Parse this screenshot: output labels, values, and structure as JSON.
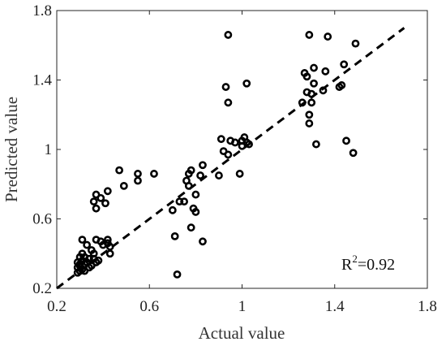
{
  "chart_data": {
    "type": "scatter",
    "xlabel": "Actual value",
    "ylabel": "Predicted value",
    "xlim": [
      0.2,
      1.8
    ],
    "ylim": [
      0.2,
      1.8
    ],
    "xticks": [
      "0.2",
      "0.6",
      "1",
      "1.4",
      "1.8"
    ],
    "yticks": [
      "0.2",
      "0.6",
      "1",
      "1.4",
      "1.8"
    ],
    "annotation": {
      "prefix": "R",
      "sup": "2",
      "suffix": "=0.92"
    },
    "fit_line": {
      "type": "dashed",
      "x": [
        0.2,
        1.7
      ],
      "y": [
        0.2,
        1.7
      ]
    },
    "grid": false,
    "legend": "none",
    "marker": "open-circle",
    "color": "#000000",
    "points": [
      [
        0.29,
        0.29
      ],
      [
        0.3,
        0.3
      ],
      [
        0.31,
        0.31
      ],
      [
        0.32,
        0.3
      ],
      [
        0.29,
        0.32
      ],
      [
        0.3,
        0.34
      ],
      [
        0.31,
        0.36
      ],
      [
        0.32,
        0.38
      ],
      [
        0.3,
        0.38
      ],
      [
        0.33,
        0.35
      ],
      [
        0.34,
        0.32
      ],
      [
        0.35,
        0.33
      ],
      [
        0.36,
        0.37
      ],
      [
        0.37,
        0.35
      ],
      [
        0.38,
        0.36
      ],
      [
        0.36,
        0.4
      ],
      [
        0.35,
        0.42
      ],
      [
        0.33,
        0.45
      ],
      [
        0.31,
        0.48
      ],
      [
        0.37,
        0.48
      ],
      [
        0.39,
        0.47
      ],
      [
        0.4,
        0.45
      ],
      [
        0.42,
        0.46
      ],
      [
        0.43,
        0.44
      ],
      [
        0.42,
        0.48
      ],
      [
        0.43,
        0.4
      ],
      [
        0.29,
        0.35
      ],
      [
        0.3,
        0.33
      ],
      [
        0.32,
        0.34
      ],
      [
        0.34,
        0.37
      ],
      [
        0.31,
        0.4
      ],
      [
        0.36,
        0.7
      ],
      [
        0.37,
        0.66
      ],
      [
        0.37,
        0.74
      ],
      [
        0.39,
        0.72
      ],
      [
        0.41,
        0.69
      ],
      [
        0.42,
        0.76
      ],
      [
        0.47,
        0.88
      ],
      [
        0.49,
        0.79
      ],
      [
        0.55,
        0.82
      ],
      [
        0.55,
        0.86
      ],
      [
        0.62,
        0.86
      ],
      [
        0.7,
        0.65
      ],
      [
        0.71,
        0.5
      ],
      [
        0.72,
        0.28
      ],
      [
        0.73,
        0.7
      ],
      [
        0.75,
        0.7
      ],
      [
        0.76,
        0.82
      ],
      [
        0.77,
        0.86
      ],
      [
        0.78,
        0.88
      ],
      [
        0.77,
        0.79
      ],
      [
        0.78,
        0.55
      ],
      [
        0.79,
        0.66
      ],
      [
        0.8,
        0.64
      ],
      [
        0.8,
        0.74
      ],
      [
        0.82,
        0.85
      ],
      [
        0.83,
        0.47
      ],
      [
        0.83,
        0.91
      ],
      [
        0.9,
        0.85
      ],
      [
        0.91,
        1.06
      ],
      [
        0.92,
        0.99
      ],
      [
        0.93,
        1.36
      ],
      [
        0.94,
        1.66
      ],
      [
        0.94,
        1.27
      ],
      [
        0.94,
        0.97
      ],
      [
        0.95,
        1.05
      ],
      [
        0.97,
        1.04
      ],
      [
        0.99,
        0.86
      ],
      [
        1.0,
        1.02
      ],
      [
        1.0,
        1.05
      ],
      [
        1.01,
        1.07
      ],
      [
        1.02,
        1.04
      ],
      [
        1.02,
        1.38
      ],
      [
        1.03,
        1.03
      ],
      [
        1.26,
        1.27
      ],
      [
        1.27,
        1.44
      ],
      [
        1.28,
        1.33
      ],
      [
        1.28,
        1.42
      ],
      [
        1.29,
        1.66
      ],
      [
        1.3,
        1.32
      ],
      [
        1.29,
        1.2
      ],
      [
        1.29,
        1.15
      ],
      [
        1.3,
        1.27
      ],
      [
        1.31,
        1.38
      ],
      [
        1.31,
        1.47
      ],
      [
        1.32,
        1.03
      ],
      [
        1.35,
        1.34
      ],
      [
        1.36,
        1.45
      ],
      [
        1.37,
        1.65
      ],
      [
        1.42,
        1.36
      ],
      [
        1.43,
        1.37
      ],
      [
        1.44,
        1.49
      ],
      [
        1.45,
        1.05
      ],
      [
        1.48,
        0.98
      ],
      [
        1.49,
        1.61
      ]
    ]
  }
}
